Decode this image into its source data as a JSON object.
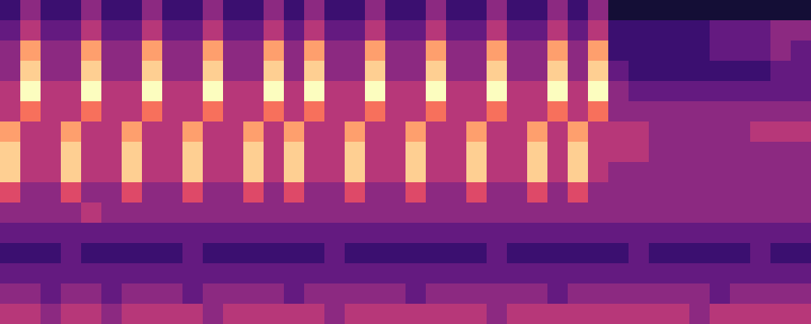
{
  "chart_data": {
    "type": "heatmap",
    "tick_labels": false,
    "zlim": [
      0,
      10
    ],
    "cells": [
      [
        2,
        4,
        2,
        2,
        4,
        2,
        2,
        4,
        2,
        2,
        4,
        2,
        2,
        4,
        2,
        4,
        2,
        2,
        4,
        2,
        2,
        4,
        2,
        2,
        4,
        2,
        2,
        4,
        2,
        4,
        1,
        1,
        1,
        1,
        1,
        1,
        1,
        1,
        1,
        1
      ],
      [
        3,
        5,
        3,
        3,
        5,
        3,
        3,
        5,
        3,
        3,
        5,
        3,
        3,
        5,
        3,
        5,
        3,
        3,
        5,
        3,
        3,
        5,
        3,
        3,
        5,
        3,
        3,
        5,
        3,
        5,
        2,
        2,
        2,
        2,
        2,
        3,
        3,
        3,
        4,
        4
      ],
      [
        4,
        8,
        4,
        4,
        8,
        4,
        4,
        8,
        4,
        4,
        8,
        4,
        4,
        8,
        4,
        8,
        4,
        4,
        8,
        4,
        4,
        8,
        4,
        4,
        8,
        4,
        4,
        8,
        4,
        8,
        2,
        2,
        2,
        2,
        2,
        3,
        3,
        3,
        4,
        3
      ],
      [
        4,
        9,
        4,
        4,
        9,
        4,
        4,
        9,
        4,
        4,
        9,
        4,
        4,
        9,
        4,
        9,
        4,
        4,
        9,
        4,
        4,
        9,
        4,
        4,
        9,
        4,
        4,
        9,
        4,
        9,
        3,
        2,
        2,
        2,
        2,
        2,
        2,
        2,
        3,
        3
      ],
      [
        5,
        10,
        5,
        5,
        10,
        5,
        5,
        10,
        5,
        5,
        10,
        5,
        5,
        10,
        5,
        10,
        5,
        5,
        10,
        5,
        5,
        10,
        5,
        5,
        10,
        5,
        5,
        10,
        5,
        10,
        4,
        3,
        3,
        3,
        3,
        3,
        3,
        3,
        3,
        3
      ],
      [
        5,
        7,
        5,
        5,
        7,
        5,
        5,
        7,
        5,
        5,
        7,
        5,
        5,
        7,
        5,
        7,
        5,
        5,
        7,
        5,
        5,
        7,
        5,
        5,
        7,
        5,
        5,
        7,
        5,
        7,
        4,
        4,
        4,
        4,
        4,
        4,
        4,
        4,
        4,
        4
      ],
      [
        8,
        5,
        5,
        8,
        5,
        5,
        8,
        5,
        5,
        8,
        5,
        5,
        8,
        5,
        8,
        5,
        5,
        8,
        5,
        5,
        8,
        5,
        5,
        8,
        5,
        5,
        8,
        5,
        8,
        5,
        5,
        5,
        4,
        4,
        4,
        4,
        4,
        5,
        5,
        5
      ],
      [
        9,
        5,
        5,
        9,
        5,
        5,
        9,
        5,
        5,
        9,
        5,
        5,
        9,
        5,
        9,
        5,
        5,
        9,
        5,
        5,
        9,
        5,
        5,
        9,
        5,
        5,
        9,
        5,
        9,
        5,
        5,
        5,
        4,
        4,
        4,
        4,
        4,
        4,
        4,
        4
      ],
      [
        9,
        5,
        5,
        9,
        5,
        5,
        9,
        5,
        5,
        9,
        5,
        5,
        9,
        5,
        9,
        5,
        5,
        9,
        5,
        5,
        9,
        5,
        5,
        9,
        5,
        5,
        9,
        5,
        9,
        5,
        4,
        4,
        4,
        4,
        4,
        4,
        4,
        4,
        4,
        4
      ],
      [
        6,
        4,
        4,
        6,
        4,
        4,
        6,
        4,
        4,
        6,
        4,
        4,
        6,
        4,
        6,
        4,
        4,
        6,
        4,
        4,
        6,
        4,
        4,
        6,
        4,
        4,
        6,
        4,
        6,
        4,
        4,
        4,
        4,
        4,
        4,
        4,
        4,
        4,
        4,
        4
      ],
      [
        4,
        4,
        4,
        4,
        5,
        4,
        4,
        4,
        4,
        4,
        4,
        4,
        4,
        4,
        4,
        4,
        4,
        4,
        4,
        4,
        4,
        4,
        4,
        4,
        4,
        4,
        4,
        4,
        4,
        4,
        4,
        4,
        4,
        4,
        4,
        4,
        4,
        4,
        4,
        4
      ],
      [
        3,
        3,
        3,
        3,
        3,
        3,
        3,
        3,
        3,
        3,
        3,
        3,
        3,
        3,
        3,
        3,
        3,
        3,
        3,
        3,
        3,
        3,
        3,
        3,
        3,
        3,
        3,
        3,
        3,
        3,
        3,
        3,
        3,
        3,
        3,
        3,
        3,
        3,
        3,
        3
      ],
      [
        2,
        2,
        2,
        3,
        2,
        2,
        2,
        2,
        2,
        3,
        2,
        2,
        2,
        2,
        2,
        2,
        3,
        2,
        2,
        2,
        2,
        2,
        2,
        2,
        3,
        2,
        2,
        2,
        2,
        2,
        2,
        3,
        2,
        2,
        2,
        2,
        2,
        3,
        2,
        2
      ],
      [
        3,
        3,
        3,
        3,
        3,
        3,
        3,
        3,
        3,
        3,
        3,
        3,
        3,
        3,
        3,
        3,
        3,
        3,
        3,
        3,
        3,
        3,
        3,
        3,
        3,
        3,
        3,
        3,
        3,
        3,
        3,
        3,
        3,
        3,
        3,
        3,
        3,
        3,
        3,
        3
      ],
      [
        4,
        4,
        3,
        4,
        4,
        3,
        4,
        4,
        4,
        3,
        4,
        4,
        4,
        4,
        3,
        4,
        4,
        4,
        4,
        4,
        3,
        4,
        4,
        4,
        4,
        4,
        4,
        3,
        4,
        4,
        4,
        4,
        4,
        4,
        4,
        3,
        4,
        4,
        4,
        4
      ],
      [
        5,
        5,
        4,
        5,
        5,
        4,
        5,
        5,
        5,
        5,
        4,
        5,
        5,
        5,
        5,
        5,
        4,
        5,
        5,
        5,
        5,
        5,
        5,
        5,
        4,
        5,
        5,
        5,
        5,
        5,
        5,
        5,
        5,
        5,
        4,
        5,
        5,
        5,
        5,
        5
      ]
    ]
  }
}
